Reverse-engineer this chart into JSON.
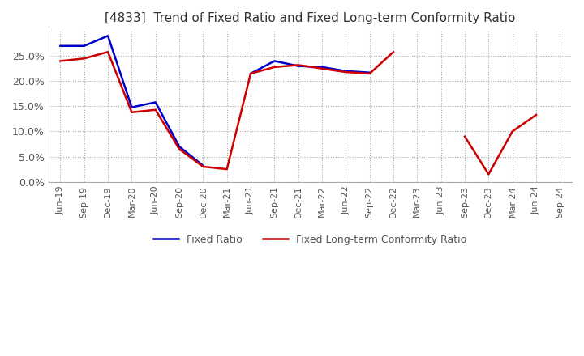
{
  "title": "[4833]  Trend of Fixed Ratio and Fixed Long-term Conformity Ratio",
  "title_fontsize": 11,
  "x_labels": [
    "Jun-19",
    "Sep-19",
    "Dec-19",
    "Mar-20",
    "Jun-20",
    "Sep-20",
    "Dec-20",
    "Mar-21",
    "Jun-21",
    "Sep-21",
    "Dec-21",
    "Mar-22",
    "Jun-22",
    "Sep-22",
    "Dec-22",
    "Mar-23",
    "Jun-23",
    "Sep-23",
    "Dec-23",
    "Mar-24",
    "Jun-24",
    "Sep-24"
  ],
  "fixed_ratio": [
    0.27,
    0.27,
    0.29,
    0.148,
    0.158,
    0.07,
    0.032,
    null,
    0.215,
    0.24,
    0.23,
    0.228,
    0.22,
    0.217,
    null,
    null,
    null,
    null,
    null,
    null,
    null,
    null
  ],
  "fixed_lt_ratio": [
    0.24,
    0.245,
    0.258,
    0.138,
    0.143,
    0.065,
    0.03,
    0.025,
    0.215,
    0.228,
    0.232,
    0.225,
    0.218,
    0.215,
    0.258,
    null,
    null,
    null,
    null,
    null,
    null,
    null
  ],
  "fixed_lt_ratio_part2": [
    null,
    null,
    null,
    null,
    null,
    null,
    null,
    null,
    null,
    null,
    null,
    null,
    null,
    null,
    null,
    null,
    null,
    0.09,
    0.015,
    0.1,
    0.133,
    null
  ],
  "fixed_ratio_color": "#0000cc",
  "fixed_lt_ratio_color": "#cc0000",
  "ylim_min": 0.0,
  "ylim_max": 0.3,
  "yticks": [
    0.0,
    0.05,
    0.1,
    0.15,
    0.2,
    0.25
  ],
  "background_color": "#ffffff",
  "grid_color": "#aaaaaa",
  "legend_fixed": "Fixed Ratio",
  "legend_fixed_lt": "Fixed Long-term Conformity Ratio"
}
